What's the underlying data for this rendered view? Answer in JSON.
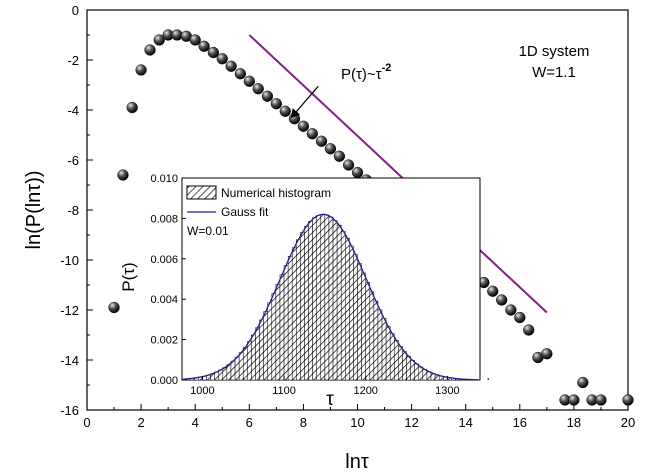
{
  "chart_data": [
    {
      "type": "scatter",
      "xlabel": "lnτ",
      "ylabel": "ln(P(lnτ))",
      "xlim": [
        0,
        20
      ],
      "ylim": [
        -16,
        0
      ],
      "xticks": [
        0,
        2,
        4,
        6,
        8,
        10,
        12,
        14,
        16,
        18,
        20
      ],
      "yticks": [
        0,
        -2,
        -4,
        -6,
        -8,
        -10,
        -12,
        -14,
        -16
      ],
      "annotations": {
        "system": "1D system",
        "disorder": "W=1.1",
        "power_law_base": "P(τ)~τ",
        "power_law_exp": "-2"
      },
      "points": [
        [
          1.0,
          -11.9
        ],
        [
          1.33,
          -6.6
        ],
        [
          1.67,
          -3.9
        ],
        [
          2.0,
          -2.4
        ],
        [
          2.33,
          -1.6
        ],
        [
          2.67,
          -1.2
        ],
        [
          3.0,
          -1.0
        ],
        [
          3.33,
          -1.0
        ],
        [
          3.67,
          -1.05
        ],
        [
          4.0,
          -1.2
        ],
        [
          4.33,
          -1.45
        ],
        [
          4.67,
          -1.7
        ],
        [
          5.0,
          -1.95
        ],
        [
          5.33,
          -2.25
        ],
        [
          5.67,
          -2.55
        ],
        [
          6.0,
          -2.85
        ],
        [
          6.33,
          -3.15
        ],
        [
          6.67,
          -3.45
        ],
        [
          7.0,
          -3.75
        ],
        [
          7.33,
          -4.05
        ],
        [
          7.67,
          -4.35
        ],
        [
          8.0,
          -4.65
        ],
        [
          8.33,
          -4.95
        ],
        [
          8.67,
          -5.25
        ],
        [
          9.0,
          -5.55
        ],
        [
          9.33,
          -5.85
        ],
        [
          9.67,
          -6.2
        ],
        [
          10.0,
          -6.5
        ],
        [
          10.33,
          -6.8
        ],
        [
          10.67,
          -7.1
        ],
        [
          11.0,
          -7.4
        ],
        [
          11.33,
          -7.7
        ],
        [
          11.67,
          -8.0
        ],
        [
          12.0,
          -8.3
        ],
        [
          12.33,
          -8.65
        ],
        [
          12.67,
          -8.95
        ],
        [
          13.0,
          -9.3
        ],
        [
          13.33,
          -9.6
        ],
        [
          13.67,
          -9.9
        ],
        [
          14.0,
          -10.25
        ],
        [
          14.33,
          -10.6
        ],
        [
          14.67,
          -10.9
        ],
        [
          15.0,
          -11.25
        ],
        [
          15.33,
          -11.6
        ],
        [
          15.67,
          -12.0
        ],
        [
          16.0,
          -12.3
        ],
        [
          16.33,
          -12.8
        ],
        [
          16.67,
          -13.9
        ],
        [
          17.0,
          -13.75
        ],
        [
          17.67,
          -15.6
        ],
        [
          18.0,
          -15.6
        ],
        [
          18.33,
          -14.9
        ],
        [
          18.67,
          -15.6
        ],
        [
          19.0,
          -15.6
        ],
        [
          20.0,
          -15.6
        ]
      ],
      "reference_line": {
        "x": [
          6.0,
          17.0
        ],
        "y": [
          -1.0,
          -12.1
        ],
        "color": "#8b1a8b"
      },
      "arrow": {
        "from": [
          8.55,
          -3.05
        ],
        "to": [
          7.55,
          -4.3
        ]
      },
      "inset": {
        "type": "bar",
        "xlabel": "τ",
        "ylabel": "P(τ)",
        "xlim": [
          975,
          1340
        ],
        "ylim": [
          0,
          0.01
        ],
        "xticks": [
          1000,
          1100,
          1200,
          1300
        ],
        "yticks": [
          "0.000",
          "0.002",
          "0.004",
          "0.006",
          "0.008",
          "0.010"
        ],
        "legend": {
          "histogram": "Numerical histogram",
          "fit": "Gauss fit",
          "note": "W=0.01"
        },
        "fit_color": "#1f1f9e",
        "gauss": {
          "mean": 1148,
          "sigma": 53,
          "peak": 0.0082
        },
        "bins": {
          "start": 975,
          "end": 1340,
          "width": 5
        }
      }
    }
  ]
}
